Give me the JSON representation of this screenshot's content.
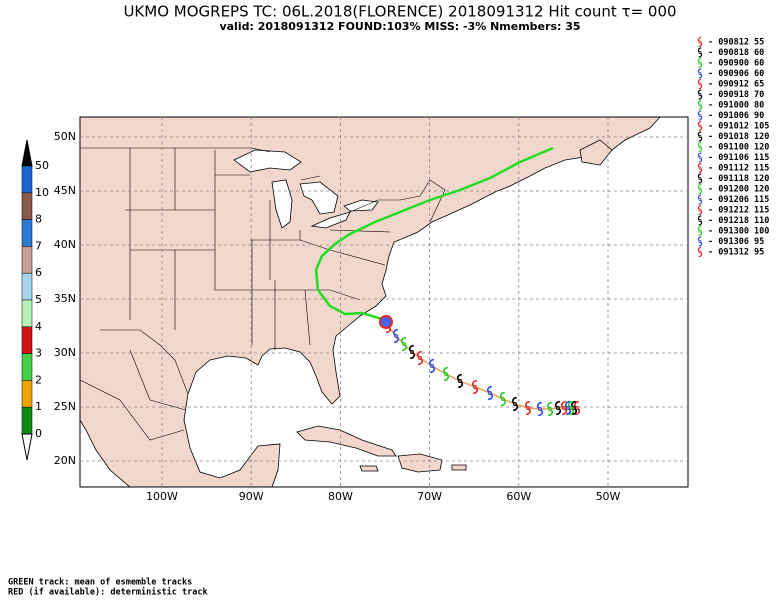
{
  "header": {
    "title": "UKMO MOGREPS TC: 06L.2018(FLORENCE) 2018091312 Hit count  τ= 000",
    "subtitle": "valid: 2018091312  FOUND:103%  MISS: -3%     Nmembers: 35"
  },
  "colorbar": {
    "labels": [
      50,
      10,
      8,
      7,
      6,
      5,
      4,
      3,
      2,
      1,
      0
    ],
    "top_color": "#000000",
    "bottom_color": "#ffffff",
    "colors": [
      "#1e64d2",
      "#8a5a4a",
      "#2a7ad6",
      "#c8a092",
      "#a8d6f2",
      "#b6f2b6",
      "#d01414",
      "#44d044",
      "#f0a400",
      "#0e8c0e"
    ]
  },
  "map": {
    "land_color": "#f2d8cc",
    "sea_color": "#ffffff",
    "lat_labels": [
      "50N",
      "45N",
      "40N",
      "35N",
      "30N",
      "25N",
      "20N"
    ],
    "lon_labels": [
      "100W",
      "90W",
      "80W",
      "70W",
      "60W",
      "50W"
    ],
    "mean_track_color": "#22dd22",
    "ensemble_track_color": "#e8a060"
  },
  "legend": {
    "entries": [
      {
        "text": "- 090812  55",
        "color": "#e02828"
      },
      {
        "text": "- 090818  60",
        "color": "#000000"
      },
      {
        "text": "- 090900  60",
        "color": "#22cc22"
      },
      {
        "text": "- 090906  60",
        "color": "#2a4ee0"
      },
      {
        "text": "- 090912  65",
        "color": "#e02828"
      },
      {
        "text": "- 090918  70",
        "color": "#000000"
      },
      {
        "text": "- 091000  80",
        "color": "#22cc22"
      },
      {
        "text": "- 091006  90",
        "color": "#2a4ee0"
      },
      {
        "text": "- 091012 105",
        "color": "#e02828"
      },
      {
        "text": "- 091018 120",
        "color": "#000000"
      },
      {
        "text": "- 091100 120",
        "color": "#22cc22"
      },
      {
        "text": "- 091106 115",
        "color": "#2a4ee0"
      },
      {
        "text": "- 091112 115",
        "color": "#e02828"
      },
      {
        "text": "- 091118 120",
        "color": "#000000"
      },
      {
        "text": "- 091200 120",
        "color": "#22cc22"
      },
      {
        "text": "- 091206 115",
        "color": "#2a4ee0"
      },
      {
        "text": "- 091212 115",
        "color": "#e02828"
      },
      {
        "text": "- 091218 110",
        "color": "#000000"
      },
      {
        "text": "- 091300 100",
        "color": "#22cc22"
      },
      {
        "text": "- 091306  95",
        "color": "#2a4ee0"
      },
      {
        "text": "- 091312  95",
        "color": "#e02828"
      }
    ]
  },
  "footer": {
    "green_note": "GREEN track: mean of esmemble tracks",
    "green_color": "#22cc22",
    "red_note": "RED (if available): deterministic track",
    "red_color": "#e02828"
  }
}
